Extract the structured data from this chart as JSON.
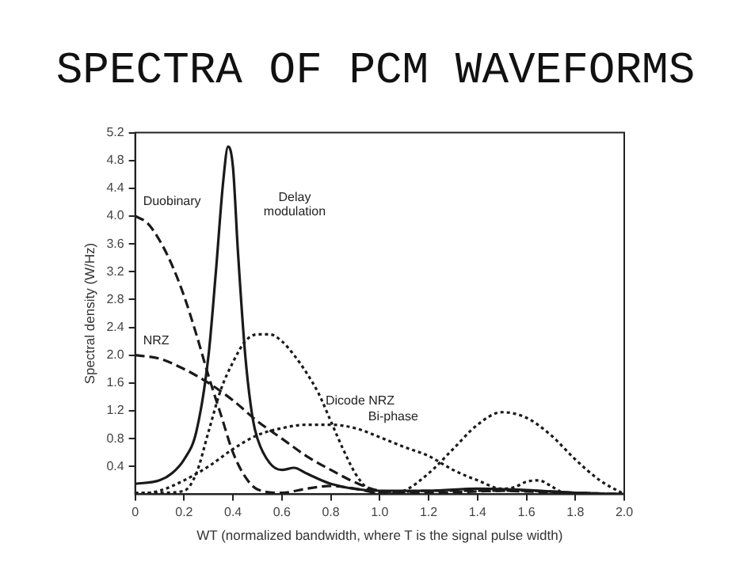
{
  "chart_data": {
    "type": "line",
    "title": "SPECTRA OF PCM WAVEFORMS",
    "xlabel": "WT (normalized bandwidth, where T is the signal pulse width)",
    "ylabel": "Spectral density (W/Hz)",
    "xlim": [
      0,
      2
    ],
    "xticks": [
      0,
      0.2,
      0.4,
      0.6,
      0.8,
      {
        "value": 1,
        "label": "1.0"
      },
      1.2,
      1.4,
      1.6,
      1.8,
      {
        "value": 2,
        "label": "2.0"
      }
    ],
    "ylim": [
      0,
      5.2
    ],
    "yticks": [
      0.4,
      0.8,
      1.2,
      1.6,
      {
        "value": 2,
        "label": "2.0"
      },
      2.4,
      2.8,
      3.2,
      3.6,
      {
        "value": 4,
        "label": "4.0"
      },
      4.4,
      4.8,
      5.2
    ],
    "grid": false,
    "legend": false,
    "marker": "none",
    "series": [
      {
        "name": "Delay modulation",
        "color": "#1a1a1a",
        "line_style": "solid",
        "x": [
          0,
          0.1,
          0.15,
          0.2,
          0.25,
          0.3,
          0.33,
          0.36,
          0.38,
          0.4,
          0.42,
          0.45,
          0.48,
          0.5,
          0.55,
          0.6,
          0.65,
          0.7,
          0.8,
          1.0,
          1.2,
          1.4,
          1.6,
          1.8,
          2.0
        ],
        "values": [
          0.15,
          0.2,
          0.3,
          0.5,
          0.9,
          2.0,
          3.2,
          4.5,
          5.0,
          4.7,
          3.5,
          2.0,
          1.1,
          0.8,
          0.45,
          0.35,
          0.38,
          0.3,
          0.15,
          0.05,
          0.05,
          0.08,
          0.06,
          0.02,
          0
        ]
      },
      {
        "name": "Duobinary",
        "color": "#1a1a1a",
        "line_style": "dashed",
        "x": [
          0,
          0.05,
          0.1,
          0.15,
          0.2,
          0.25,
          0.3,
          0.35,
          0.4,
          0.45,
          0.5,
          0.6,
          0.7,
          0.8,
          0.9,
          1.0,
          1.2,
          1.4,
          1.6,
          1.8,
          2.0
        ],
        "values": [
          4.0,
          3.9,
          3.65,
          3.3,
          2.85,
          2.3,
          1.7,
          1.15,
          0.6,
          0.25,
          0.07,
          0.02,
          0.08,
          0.12,
          0.08,
          0.02,
          0.05,
          0.05,
          0.05,
          0.02,
          0
        ]
      },
      {
        "name": "NRZ",
        "color": "#1a1a1a",
        "line_style": "dashed",
        "x": [
          0,
          0.1,
          0.2,
          0.3,
          0.4,
          0.5,
          0.6,
          0.7,
          0.8,
          0.9,
          1.0,
          1.2,
          1.4,
          1.5,
          1.6,
          1.8,
          2.0
        ],
        "values": [
          2.0,
          1.95,
          1.8,
          1.6,
          1.35,
          1.05,
          0.8,
          0.55,
          0.35,
          0.17,
          0.05,
          0.02,
          0.04,
          0.05,
          0.04,
          0.02,
          0
        ]
      },
      {
        "name": "Dicode NRZ",
        "color": "#1a1a1a",
        "line_style": "dotted",
        "x": [
          0,
          0.1,
          0.2,
          0.25,
          0.3,
          0.35,
          0.4,
          0.45,
          0.5,
          0.55,
          0.6,
          0.65,
          0.7,
          0.75,
          0.8,
          0.85,
          0.9,
          0.95,
          1.0,
          1.1,
          1.2,
          1.3,
          1.4,
          1.5,
          1.6,
          1.7,
          1.8,
          1.9,
          2.0
        ],
        "values": [
          0.02,
          0.02,
          0.05,
          0.3,
          0.9,
          1.5,
          1.9,
          2.2,
          2.3,
          2.3,
          2.2,
          2.0,
          1.75,
          1.45,
          1.05,
          0.65,
          0.3,
          0.08,
          0,
          0.05,
          0.3,
          0.65,
          1.0,
          1.18,
          1.1,
          0.85,
          0.5,
          0.2,
          0
        ]
      },
      {
        "name": "Bi-phase",
        "color": "#1a1a1a",
        "line_style": "dotted",
        "x": [
          0,
          0.1,
          0.2,
          0.3,
          0.4,
          0.5,
          0.6,
          0.7,
          0.8,
          0.9,
          1.0,
          1.1,
          1.2,
          1.3,
          1.4,
          1.5,
          1.55,
          1.6,
          1.65,
          1.7,
          1.75,
          1.8
        ],
        "values": [
          0,
          0.05,
          0.2,
          0.4,
          0.65,
          0.85,
          0.95,
          1.0,
          1.0,
          0.95,
          0.82,
          0.68,
          0.55,
          0.35,
          0.2,
          0.08,
          0.1,
          0.18,
          0.2,
          0.12,
          0.02,
          0
        ]
      }
    ]
  }
}
